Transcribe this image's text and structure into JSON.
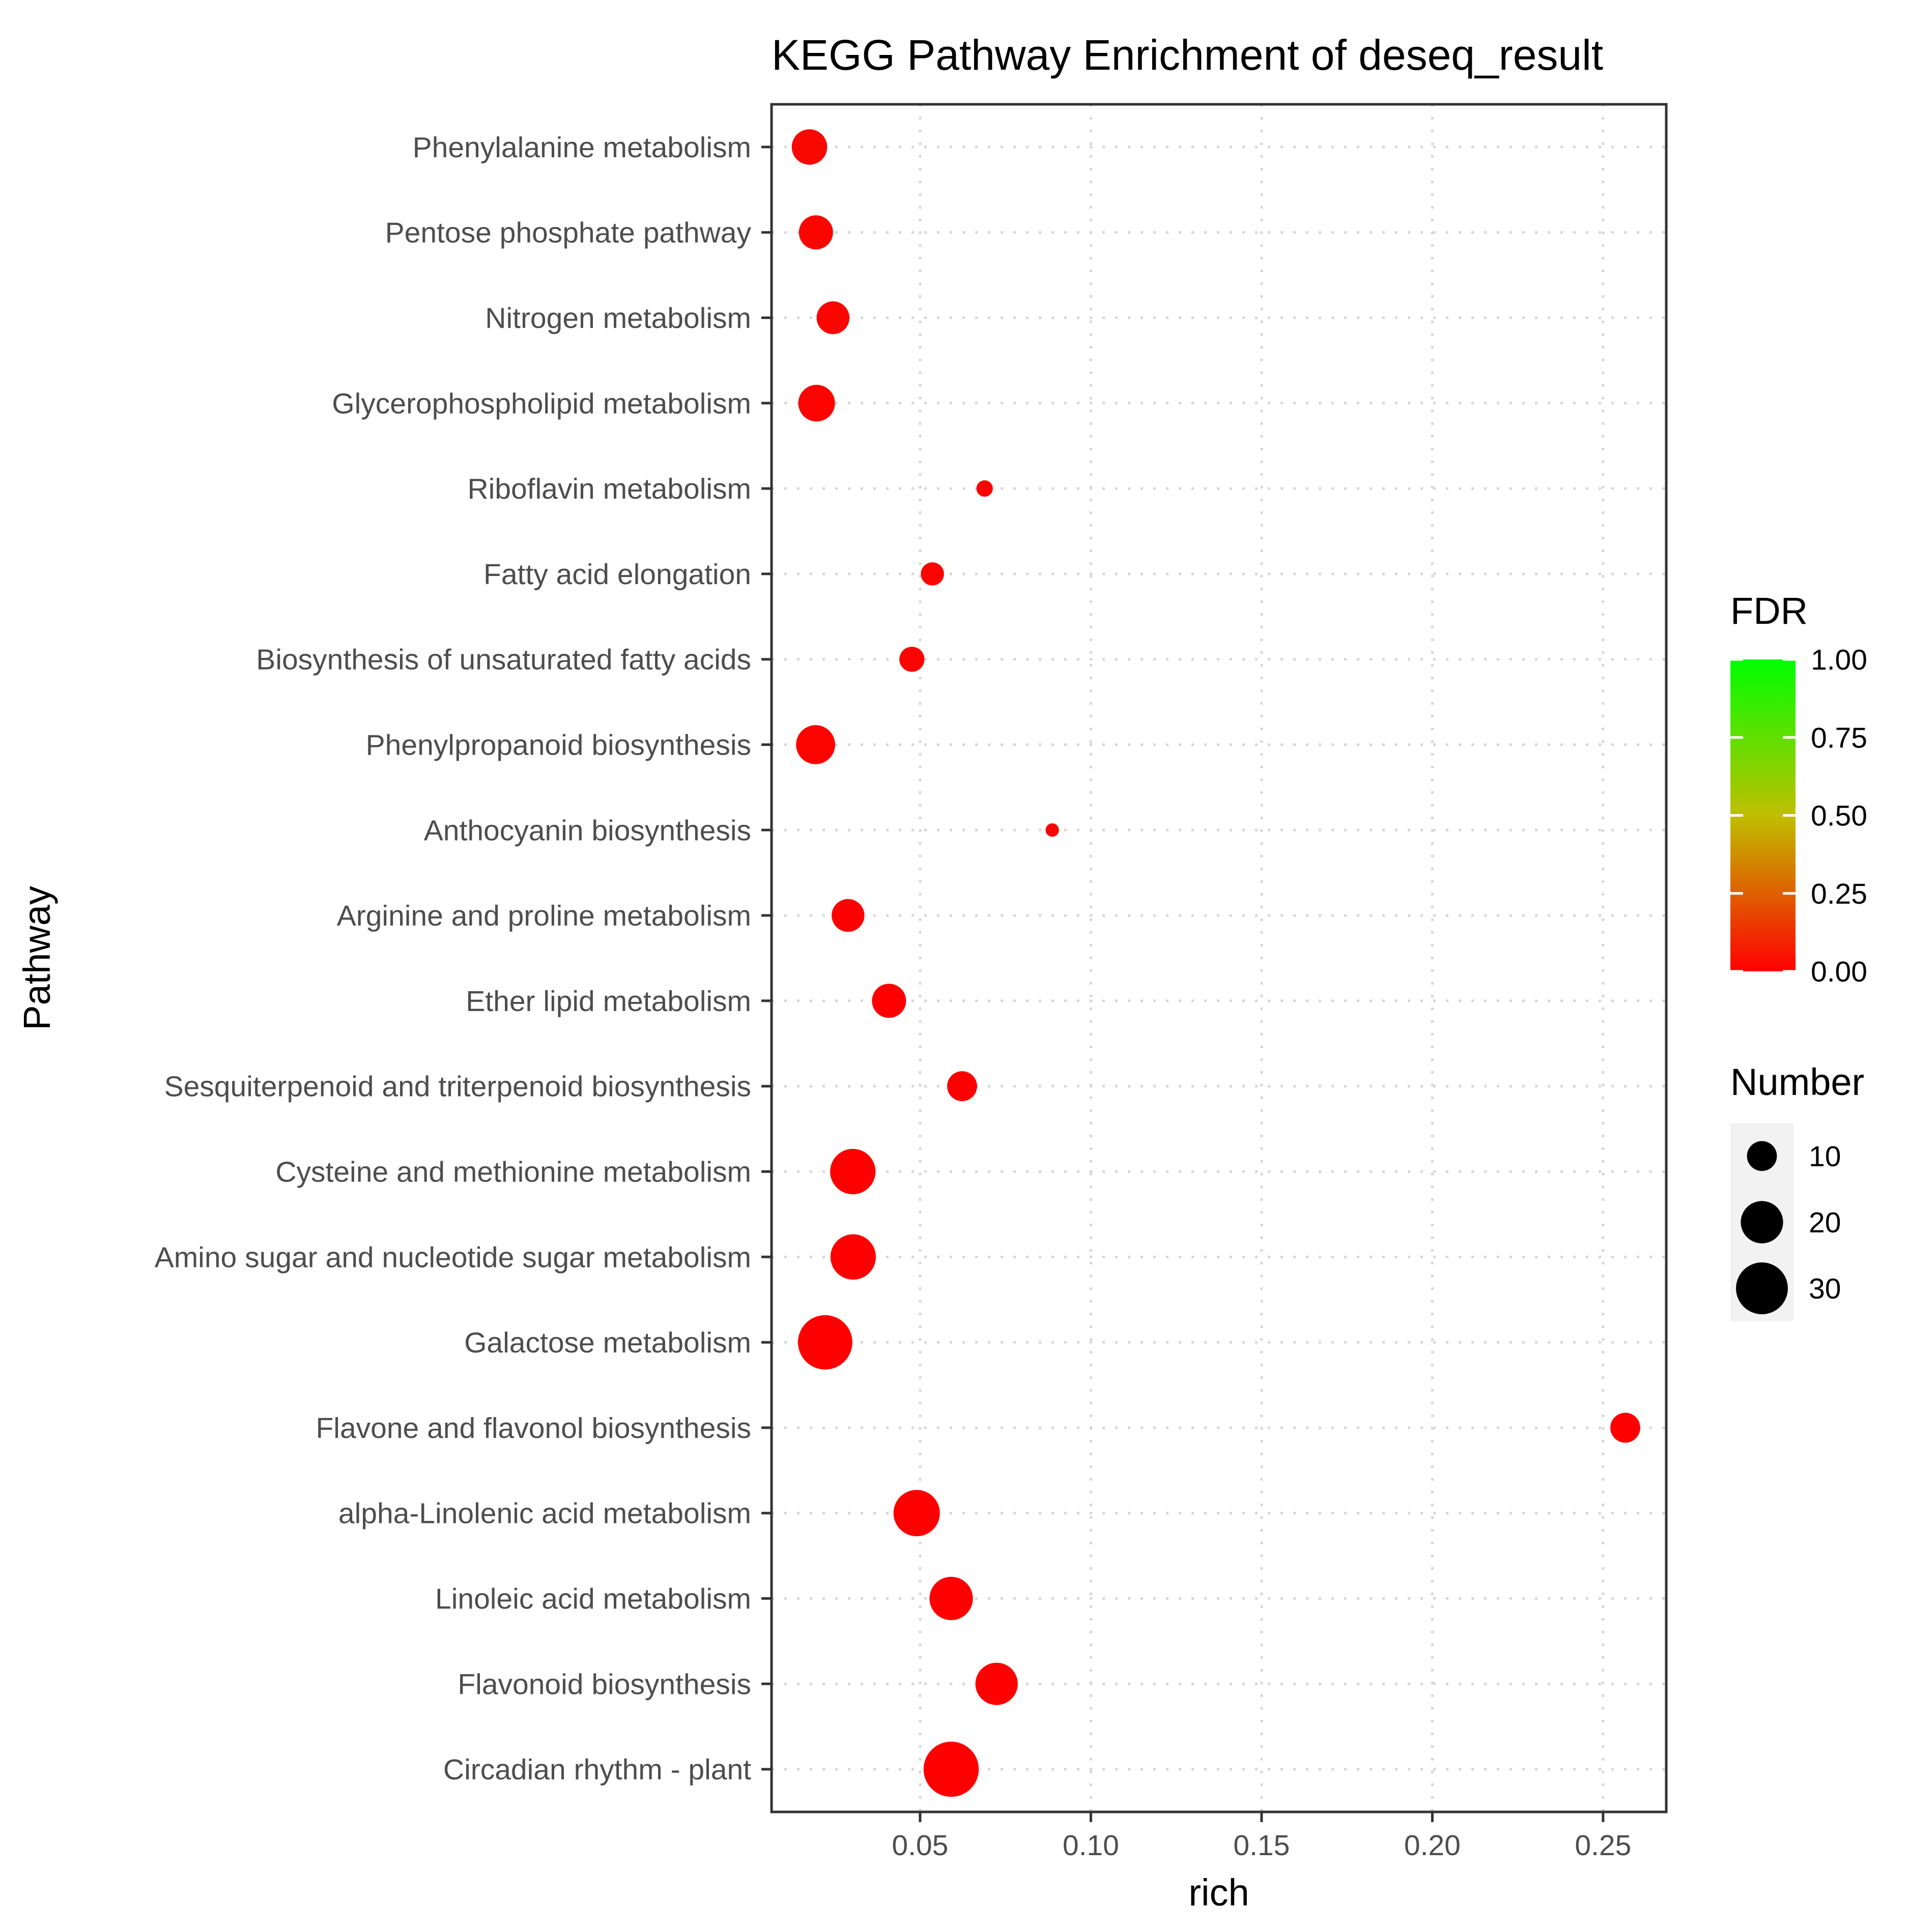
{
  "chart_data": {
    "type": "scatter",
    "title": "KEGG Pathway Enrichment of deseq_result",
    "xlabel": "rich",
    "ylabel": "Pathway",
    "xlim": [
      0.0065,
      0.2685
    ],
    "x_ticks": [
      0.05,
      0.1,
      0.15,
      0.2,
      0.25
    ],
    "x_tick_labels": [
      "0.05",
      "0.10",
      "0.15",
      "0.20",
      "0.25"
    ],
    "grid": true,
    "categories": [
      "Phenylalanine metabolism",
      "Pentose phosphate pathway",
      "Nitrogen metabolism",
      "Glycerophospholipid metabolism",
      "Riboflavin metabolism",
      "Fatty acid elongation",
      "Biosynthesis of unsaturated fatty acids",
      "Phenylpropanoid biosynthesis",
      "Anthocyanin biosynthesis",
      "Arginine and proline metabolism",
      "Ether lipid metabolism",
      "Sesquiterpenoid and triterpenoid biosynthesis",
      "Cysteine and methionine metabolism",
      "Amino sugar and nucleotide sugar metabolism",
      "Galactose metabolism",
      "Flavone and flavonol biosynthesis",
      "alpha-Linolenic acid metabolism",
      "Linoleic acid metabolism",
      "Flavonoid biosynthesis",
      "Circadian rhythm - plant"
    ],
    "points": [
      {
        "pathway": "Phenylalanine metabolism",
        "rich": 0.0176,
        "number": 14,
        "fdr": 0.03
      },
      {
        "pathway": "Pentose phosphate pathway",
        "rich": 0.0195,
        "number": 13,
        "fdr": 0.02
      },
      {
        "pathway": "Nitrogen metabolism",
        "rich": 0.0245,
        "number": 12,
        "fdr": 0.02
      },
      {
        "pathway": "Glycerophospholipid metabolism",
        "rich": 0.0197,
        "number": 15,
        "fdr": 0.01
      },
      {
        "pathway": "Riboflavin metabolism",
        "rich": 0.0689,
        "number": 3,
        "fdr": 0.01
      },
      {
        "pathway": "Fatty acid elongation",
        "rich": 0.0536,
        "number": 6,
        "fdr": 0.01
      },
      {
        "pathway": "Biosynthesis of unsaturated fatty acids",
        "rich": 0.0476,
        "number": 7,
        "fdr": 0.01
      },
      {
        "pathway": "Phenylpropanoid biosynthesis",
        "rich": 0.0194,
        "number": 17,
        "fdr": 0.01
      },
      {
        "pathway": "Anthocyanin biosynthesis",
        "rich": 0.0887,
        "number": 2,
        "fdr": 0.01
      },
      {
        "pathway": "Arginine and proline metabolism",
        "rich": 0.0289,
        "number": 12,
        "fdr": 0.0
      },
      {
        "pathway": "Ether lipid metabolism",
        "rich": 0.0409,
        "number": 13,
        "fdr": 0.0
      },
      {
        "pathway": "Sesquiterpenoid and triterpenoid biosynthesis",
        "rich": 0.0623,
        "number": 10,
        "fdr": 0.0
      },
      {
        "pathway": "Cysteine and methionine metabolism",
        "rich": 0.0303,
        "number": 23,
        "fdr": 0.0
      },
      {
        "pathway": "Amino sugar and nucleotide sugar metabolism",
        "rich": 0.0304,
        "number": 23,
        "fdr": 0.0
      },
      {
        "pathway": "Galactose metabolism",
        "rich": 0.0222,
        "number": 33,
        "fdr": 0.0
      },
      {
        "pathway": "Flavone and flavonol biosynthesis",
        "rich": 0.2565,
        "number": 10,
        "fdr": 0.0
      },
      {
        "pathway": "alpha-Linolenic acid metabolism",
        "rich": 0.049,
        "number": 24,
        "fdr": 0.0
      },
      {
        "pathway": "Linoleic acid metabolism",
        "rich": 0.0591,
        "number": 21,
        "fdr": 0.0
      },
      {
        "pathway": "Flavonoid biosynthesis",
        "rich": 0.0724,
        "number": 20,
        "fdr": 0.0
      },
      {
        "pathway": "Circadian rhythm - plant",
        "rich": 0.0591,
        "number": 34,
        "fdr": 0.0
      }
    ],
    "legend_color": {
      "title": "FDR",
      "range": [
        0.0,
        1.0
      ],
      "breaks": [
        1.0,
        0.75,
        0.5,
        0.25,
        0.0
      ],
      "labels": [
        "1.00",
        "0.75",
        "0.50",
        "0.25",
        "0.00"
      ],
      "low_color": "#ff0000",
      "high_color": "#00ff00"
    },
    "legend_size": {
      "title": "Number",
      "breaks": [
        10,
        20,
        30
      ],
      "labels": [
        "10",
        "20",
        "30"
      ]
    },
    "legend_position": "right"
  }
}
